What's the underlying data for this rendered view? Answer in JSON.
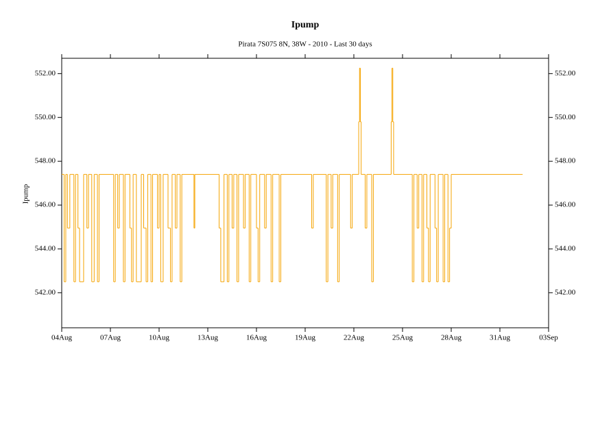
{
  "chart_data": {
    "type": "line",
    "title": "Ipump",
    "subtitle": "Pirata 7S075 8N, 38W - 2010 - Last 30 days",
    "y_label": "Ipump",
    "step": "post",
    "color": "#f5a300",
    "xlim": [
      0,
      30
    ],
    "xticks": [
      {
        "value": 0,
        "label": "04Aug"
      },
      {
        "value": 3,
        "label": "07Aug"
      },
      {
        "value": 6,
        "label": "10Aug"
      },
      {
        "value": 9,
        "label": "13Aug"
      },
      {
        "value": 12,
        "label": "16Aug"
      },
      {
        "value": 15,
        "label": "19Aug"
      },
      {
        "value": 18,
        "label": "22Aug"
      },
      {
        "value": 21,
        "label": "25Aug"
      },
      {
        "value": 24,
        "label": "28Aug"
      },
      {
        "value": 27,
        "label": "31Aug"
      },
      {
        "value": 30,
        "label": "03Sep"
      }
    ],
    "ylim": [
      540.4,
      552.7
    ],
    "yticks": [
      {
        "value": 542,
        "label": "542.00"
      },
      {
        "value": 544,
        "label": "544.00"
      },
      {
        "value": 546,
        "label": "546.00"
      },
      {
        "value": 548,
        "label": "548.00"
      },
      {
        "value": 550,
        "label": "550.00"
      },
      {
        "value": 552,
        "label": "552.00"
      }
    ],
    "x": [
      0,
      0.15,
      0.25,
      0.35,
      0.5,
      0.75,
      0.85,
      1.0,
      1.1,
      1.35,
      1.55,
      1.65,
      1.85,
      2.0,
      2.2,
      2.3,
      3.2,
      3.3,
      3.45,
      3.55,
      3.8,
      3.9,
      4.2,
      4.3,
      4.4,
      4.6,
      4.9,
      5.05,
      5.2,
      5.3,
      5.5,
      5.6,
      5.9,
      6.0,
      6.1,
      6.25,
      6.55,
      6.7,
      6.8,
      7.0,
      7.1,
      7.3,
      7.4,
      8.15,
      8.2,
      9.7,
      9.8,
      10.0,
      10.2,
      10.3,
      10.5,
      10.6,
      10.8,
      10.9,
      11.2,
      11.3,
      11.55,
      11.65,
      12.0,
      12.1,
      12.2,
      12.5,
      12.6,
      12.9,
      13.0,
      13.4,
      13.5,
      15.4,
      15.5,
      16.3,
      16.4,
      16.6,
      16.7,
      17.0,
      17.1,
      17.8,
      17.9,
      18.3,
      18.35,
      18.4,
      18.45,
      18.7,
      18.8,
      19.1,
      19.2,
      20.3,
      20.35,
      20.4,
      20.45,
      21.6,
      21.7,
      21.9,
      22.0,
      22.2,
      22.3,
      22.5,
      22.6,
      22.7,
      23.0,
      23.1,
      23.2,
      23.5,
      23.6,
      23.8,
      23.9,
      24.0,
      28.4
    ],
    "values": [
      547.4,
      542.5,
      547.4,
      544.95,
      547.4,
      542.5,
      547.4,
      544.95,
      542.5,
      547.4,
      544.95,
      547.4,
      542.5,
      547.4,
      542.5,
      547.4,
      542.5,
      547.4,
      544.95,
      547.4,
      542.5,
      547.4,
      544.95,
      542.5,
      547.4,
      542.5,
      547.4,
      544.95,
      542.5,
      547.4,
      542.5,
      547.4,
      544.95,
      547.4,
      542.5,
      547.4,
      544.95,
      542.5,
      547.4,
      544.95,
      547.4,
      542.5,
      547.4,
      544.95,
      547.4,
      544.95,
      542.5,
      547.4,
      542.5,
      547.4,
      544.95,
      547.4,
      542.5,
      547.4,
      544.95,
      547.4,
      542.5,
      547.4,
      544.95,
      542.5,
      547.4,
      544.95,
      547.4,
      542.5,
      547.4,
      542.5,
      547.4,
      544.95,
      547.4,
      542.5,
      547.4,
      544.95,
      547.4,
      542.5,
      547.4,
      544.95,
      547.4,
      549.8,
      552.25,
      549.8,
      547.4,
      544.95,
      547.4,
      542.5,
      547.4,
      549.8,
      552.25,
      549.8,
      547.4,
      542.5,
      547.4,
      544.95,
      547.4,
      542.5,
      547.4,
      544.95,
      542.5,
      547.4,
      544.95,
      542.5,
      547.4,
      542.5,
      547.4,
      542.5,
      544.95,
      547.4,
      547.4
    ]
  }
}
